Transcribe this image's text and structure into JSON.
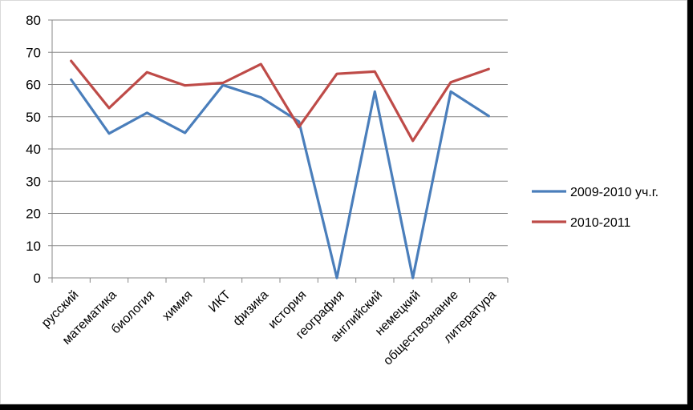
{
  "chart_data": {
    "type": "line",
    "categories": [
      "русский",
      "математика",
      "биология",
      "химия",
      "ИКТ",
      "физика",
      "история",
      "география",
      "английский",
      "немецкий",
      "обществознание",
      "литература"
    ],
    "series": [
      {
        "name": "2009-2010 уч.г.",
        "color": "#4a7ebb",
        "values": [
          61.5,
          44.8,
          51.2,
          45.0,
          59.8,
          56.0,
          48.5,
          0,
          57.8,
          0,
          57.8,
          50.2
        ]
      },
      {
        "name": "2010-2011",
        "color": "#be4b48",
        "values": [
          67.3,
          52.7,
          63.8,
          59.7,
          60.5,
          66.3,
          46.8,
          63.3,
          64.0,
          42.5,
          60.7,
          64.8
        ]
      }
    ],
    "ylim": [
      0,
      80
    ],
    "yticks": [
      "0",
      "10",
      "20",
      "30",
      "40",
      "50",
      "60",
      "70",
      "80"
    ],
    "grid": true,
    "legend": "right"
  }
}
